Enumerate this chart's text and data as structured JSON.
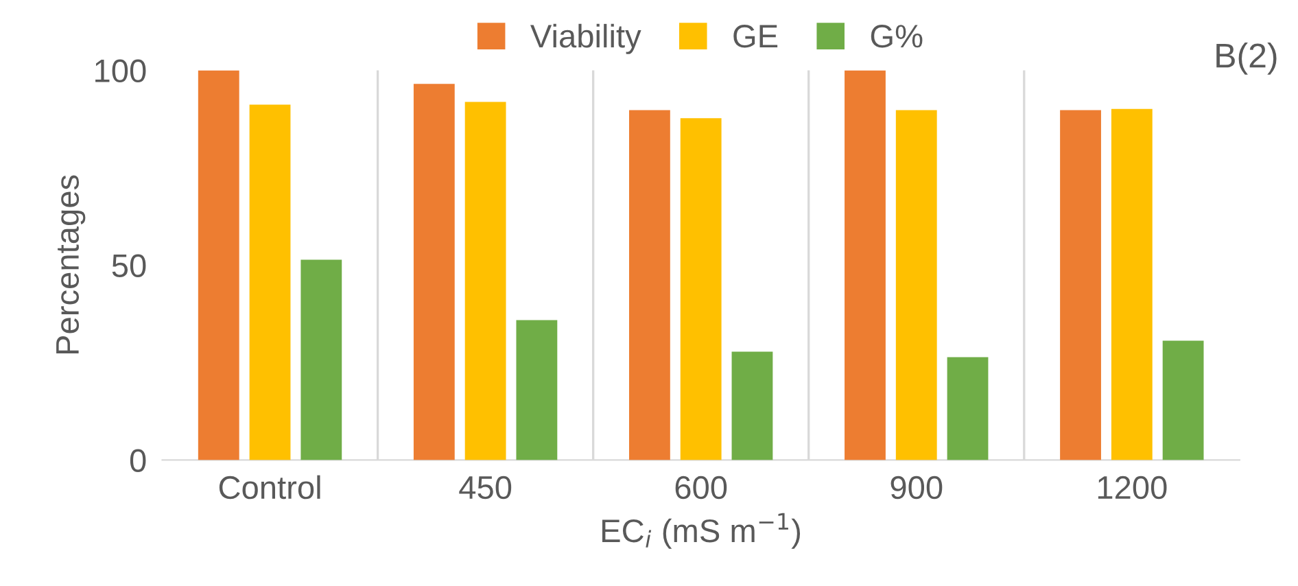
{
  "chart_data": {
    "type": "bar",
    "ylabel": "Percentages",
    "xlabel": "EC$_{i}$ (mS m$^{−1}$)",
    "annotations": [
      "B(2)"
    ],
    "categories": [
      "Control",
      "450",
      "600",
      "900",
      "1200"
    ],
    "series": [
      {
        "name": "Viability",
        "color": "#ed7d31",
        "values": [
          100,
          96.5,
          89.8,
          100,
          89.8
        ]
      },
      {
        "name": "GE",
        "color": "#ffc000",
        "values": [
          91.2,
          91.9,
          87.7,
          89.8,
          90.1
        ]
      },
      {
        "name": "G%",
        "color": "#70ad47",
        "values": [
          51.4,
          35.9,
          27.8,
          26.4,
          30.6
        ]
      }
    ],
    "ylim": [
      0,
      100
    ],
    "yticks": [
      0,
      50,
      100
    ],
    "grid": "x",
    "legend": "top"
  }
}
